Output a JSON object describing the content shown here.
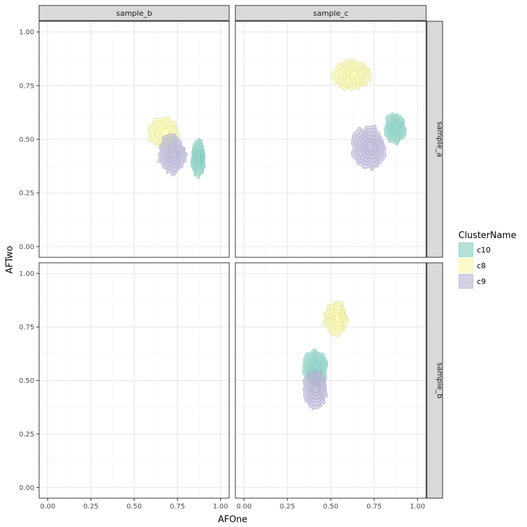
{
  "chart_data": {
    "type": "density2d",
    "title": "",
    "xlabel": "AFOne",
    "ylabel": "AFTwo",
    "xlim": [
      -0.05,
      1.05
    ],
    "ylim": [
      -0.05,
      1.05
    ],
    "x_ticks": [
      "0.00",
      "0.25",
      "0.50",
      "0.75",
      "1.00"
    ],
    "y_ticks": [
      "0.00",
      "0.25",
      "0.50",
      "0.75",
      "1.00"
    ],
    "tick_values": [
      0,
      0.25,
      0.5,
      0.75,
      1
    ],
    "minor_tick_values": [
      0.125,
      0.375,
      0.625,
      0.875
    ],
    "grid": true,
    "facet_cols": [
      "sample_b",
      "sample_c"
    ],
    "facet_rows": [
      "sample_a",
      "sample_b"
    ],
    "legend": {
      "title": "ClusterName",
      "position": "right",
      "items": [
        {
          "label": "c10",
          "color": "#8dd3c7"
        },
        {
          "label": "c8",
          "color": "#ffffb3"
        },
        {
          "label": "c9",
          "color": "#bebada"
        }
      ]
    },
    "colors": {
      "c10": {
        "fill": "#8dd3c7",
        "line": "#6cb8ab"
      },
      "c8": {
        "fill": "#ffffb3",
        "line": "#cfcf8a"
      },
      "c9": {
        "fill": "#bebada",
        "line": "#9b97bd"
      }
    },
    "panels": [
      {
        "row": "sample_a",
        "col": "sample_b",
        "clusters": [
          {
            "name": "c8",
            "center": [
              0.67,
              0.53
            ],
            "spread": [
              0.09,
              0.07
            ],
            "levels": 6
          },
          {
            "name": "c10",
            "center": [
              0.87,
              0.41
            ],
            "spread": [
              0.04,
              0.09
            ],
            "levels": 6
          },
          {
            "name": "c9",
            "center": [
              0.72,
              0.43
            ],
            "spread": [
              0.08,
              0.09
            ],
            "levels": 6
          }
        ]
      },
      {
        "row": "sample_a",
        "col": "sample_c",
        "clusters": [
          {
            "name": "c8",
            "center": [
              0.62,
              0.8
            ],
            "spread": [
              0.11,
              0.07
            ],
            "levels": 7
          },
          {
            "name": "c10",
            "center": [
              0.87,
              0.55
            ],
            "spread": [
              0.06,
              0.07
            ],
            "levels": 6
          },
          {
            "name": "c9",
            "center": [
              0.72,
              0.46
            ],
            "spread": [
              0.1,
              0.1
            ],
            "levels": 6
          }
        ]
      },
      {
        "row": "sample_b",
        "col": "sample_b",
        "clusters": []
      },
      {
        "row": "sample_b",
        "col": "sample_c",
        "clusters": [
          {
            "name": "c8",
            "center": [
              0.53,
              0.79
            ],
            "spread": [
              0.07,
              0.08
            ],
            "levels": 7
          },
          {
            "name": "c10",
            "center": [
              0.41,
              0.56
            ],
            "spread": [
              0.07,
              0.08
            ],
            "levels": 6
          },
          {
            "name": "c9",
            "center": [
              0.41,
              0.46
            ],
            "spread": [
              0.07,
              0.09
            ],
            "levels": 6
          }
        ]
      }
    ]
  }
}
